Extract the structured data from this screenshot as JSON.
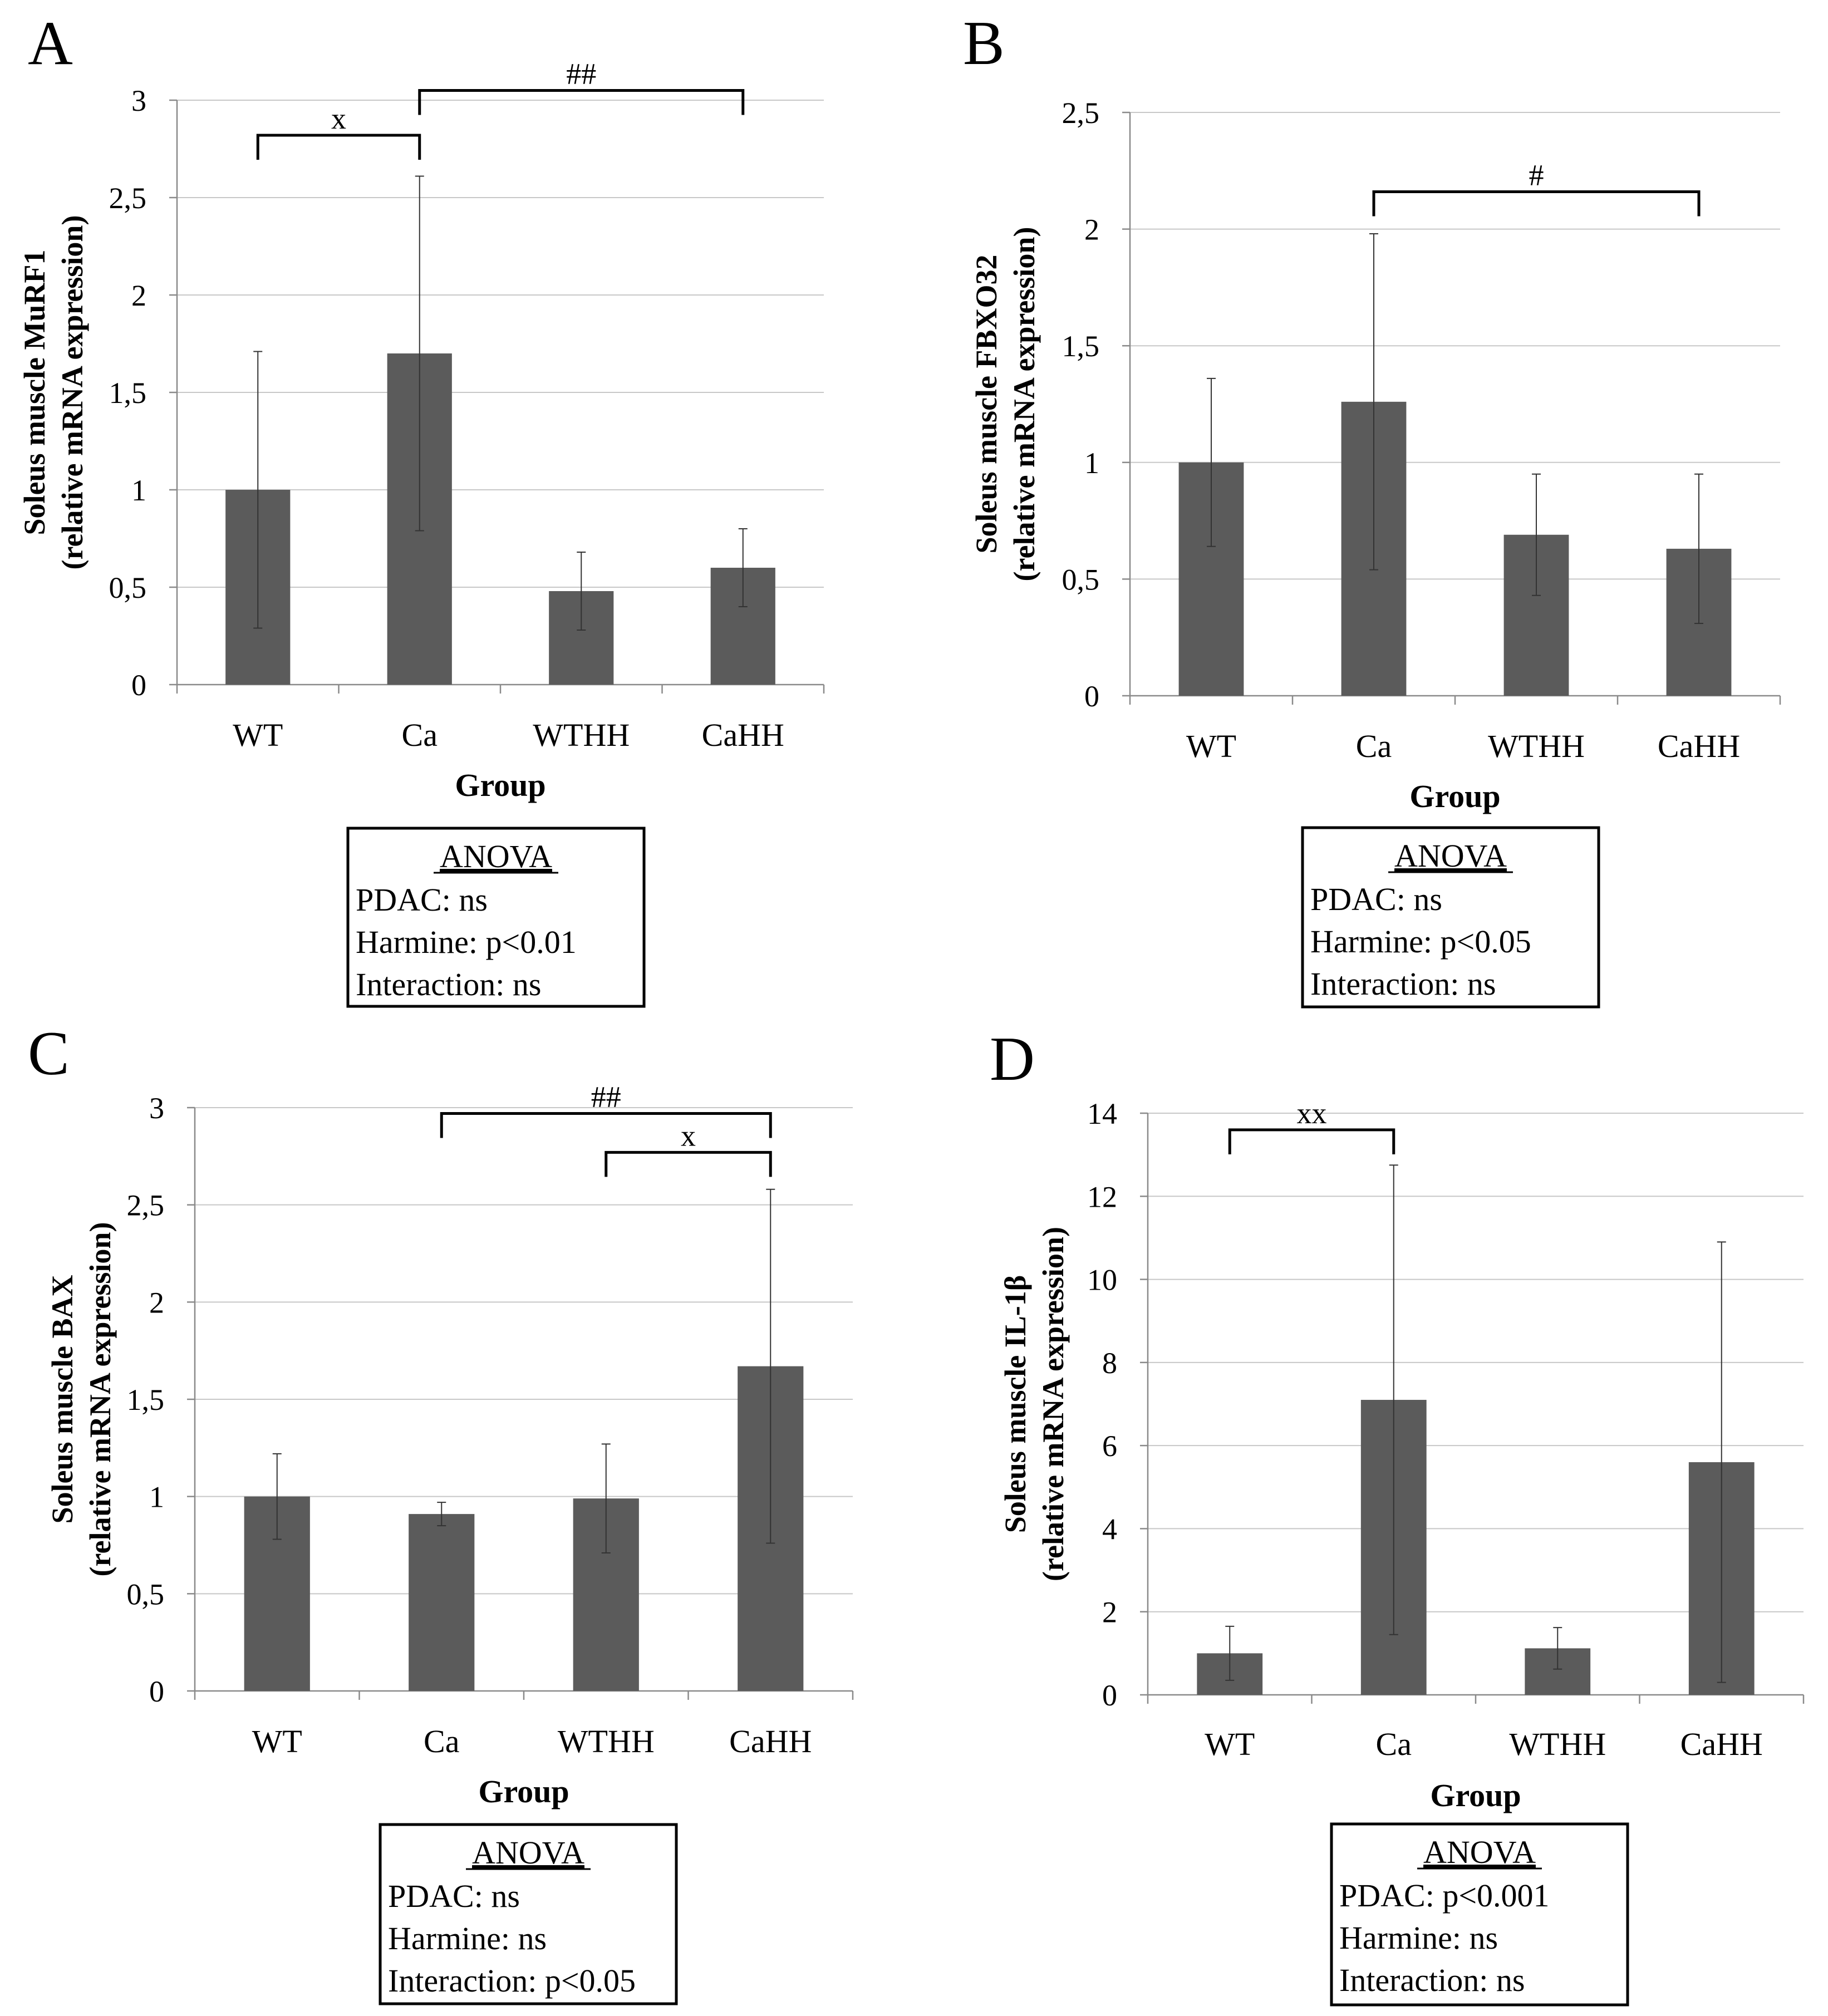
{
  "chart_data": [
    {
      "panel_label": "A",
      "type": "bar",
      "title": "",
      "ylabel_line1": "Soleus muscle MuRF1",
      "ylabel_line2": "(relative mRNA expression)",
      "xlabel": "Group",
      "categories": [
        "WT",
        "Ca",
        "WTHH",
        "CaHH"
      ],
      "values": [
        1.0,
        1.7,
        0.48,
        0.6
      ],
      "errors": [
        0.71,
        0.91,
        0.2,
        0.2
      ],
      "ylim": [
        0,
        3
      ],
      "yticks": [
        0,
        0.5,
        1,
        1.5,
        2,
        2.5,
        3
      ],
      "ytick_labels": [
        "0",
        "0,5",
        "1",
        "1,5",
        "2",
        "2,5",
        "3"
      ],
      "brackets": [
        {
          "from": 0,
          "to": 1,
          "y": 2.82,
          "label": "x"
        },
        {
          "from": 1,
          "to": 3,
          "y": 3.05,
          "label": "##"
        }
      ],
      "anova": {
        "heading": "ANOVA",
        "lines": [
          "PDAC: ns",
          "Harmine: p<0.01",
          "Interaction: ns"
        ]
      }
    },
    {
      "panel_label": "B",
      "type": "bar",
      "title": "",
      "ylabel_line1": "Soleus muscle FBXO32",
      "ylabel_line2": "(relative mRNA expression)",
      "xlabel": "Group",
      "categories": [
        "WT",
        "Ca",
        "WTHH",
        "CaHH"
      ],
      "values": [
        1.0,
        1.26,
        0.69,
        0.63
      ],
      "errors": [
        0.36,
        0.72,
        0.26,
        0.32
      ],
      "ylim": [
        0,
        2.5
      ],
      "yticks": [
        0,
        0.5,
        1,
        1.5,
        2,
        2.5
      ],
      "ytick_labels": [
        "0",
        "0,5",
        "1",
        "1,5",
        "2",
        "2,5"
      ],
      "brackets": [
        {
          "from": 1,
          "to": 3,
          "y": 2.16,
          "label": "#"
        }
      ],
      "anova": {
        "heading": "ANOVA",
        "lines": [
          "PDAC: ns",
          "Harmine: p<0.05",
          "Interaction: ns"
        ]
      }
    },
    {
      "panel_label": "C",
      "type": "bar",
      "title": "",
      "ylabel_line1": "Soleus muscle BAX",
      "ylabel_line2": "(relative mRNA expression)",
      "xlabel": "Group",
      "categories": [
        "WT",
        "Ca",
        "WTHH",
        "CaHH"
      ],
      "values": [
        1.0,
        0.91,
        0.99,
        1.67
      ],
      "errors": [
        0.22,
        0.06,
        0.28,
        0.91
      ],
      "ylim": [
        0,
        3
      ],
      "yticks": [
        0,
        0.5,
        1,
        1.5,
        2,
        2.5,
        3
      ],
      "ytick_labels": [
        "0",
        "0,5",
        "1",
        "1,5",
        "2",
        "2,5",
        "3"
      ],
      "brackets": [
        {
          "from": 1,
          "to": 3,
          "y": 2.97,
          "label": "##"
        },
        {
          "from": 2,
          "to": 3,
          "y": 2.77,
          "label": "x"
        }
      ],
      "anova": {
        "heading": "ANOVA",
        "lines": [
          "PDAC: ns",
          "Harmine: ns",
          "Interaction: p<0.05"
        ]
      }
    },
    {
      "panel_label": "D",
      "type": "bar",
      "title": "",
      "ylabel_line1": "Soleus muscle IL-1β",
      "ylabel_line2": "(relative mRNA expression)",
      "xlabel": "Group",
      "categories": [
        "WT",
        "Ca",
        "WTHH",
        "CaHH"
      ],
      "values": [
        1.0,
        7.1,
        1.12,
        5.6
      ],
      "errors": [
        0.65,
        5.65,
        0.5,
        5.3
      ],
      "ylim": [
        0,
        14
      ],
      "yticks": [
        0,
        2,
        4,
        6,
        8,
        10,
        12,
        14
      ],
      "ytick_labels": [
        "0",
        "2",
        "4",
        "6",
        "8",
        "10",
        "12",
        "14"
      ],
      "brackets": [
        {
          "from": 0,
          "to": 1,
          "y": 13.6,
          "label": "xx"
        }
      ],
      "anova": {
        "heading": "ANOVA",
        "lines": [
          "PDAC: p<0.001",
          "Harmine: ns",
          "Interaction: ns"
        ]
      }
    }
  ]
}
